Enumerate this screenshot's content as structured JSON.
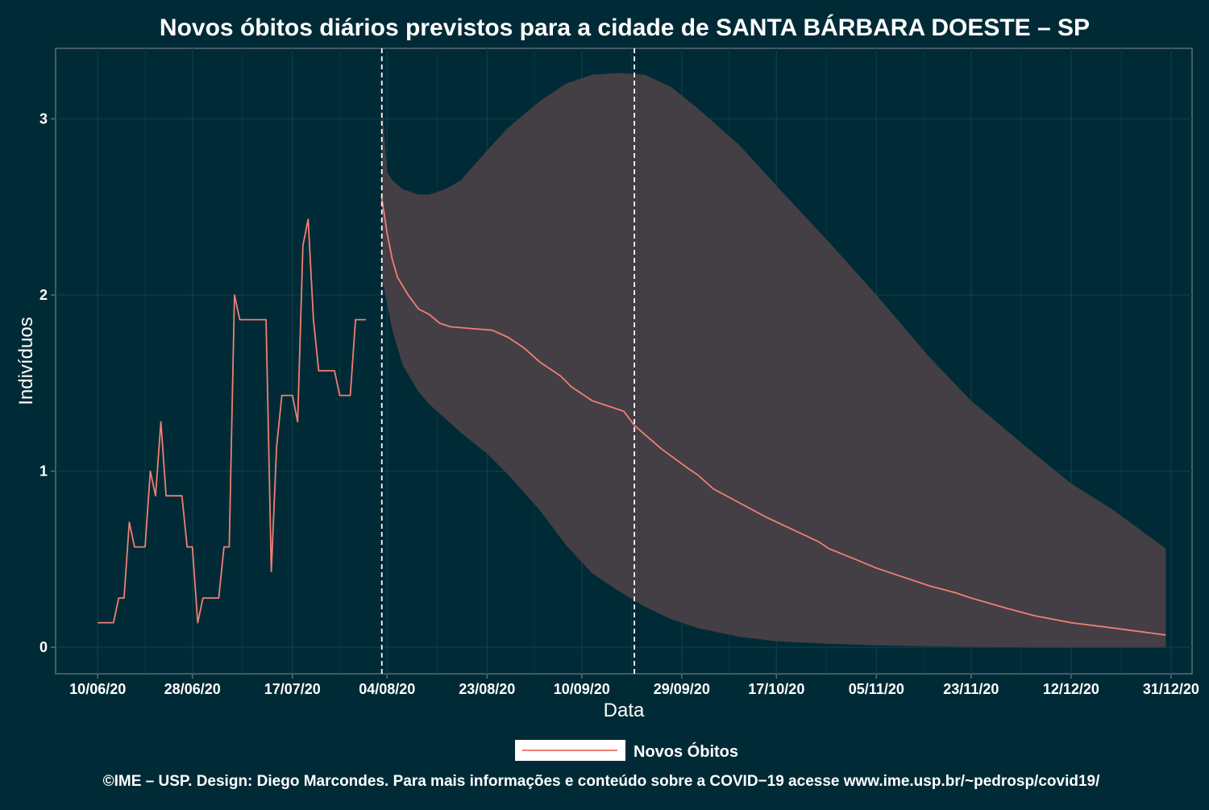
{
  "chart_data": {
    "type": "line",
    "title": "Novos óbitos diários previstos para a cidade de SANTA BÁRBARA DOESTE – SP",
    "xlabel": "Data",
    "ylabel": "Indivíduos",
    "caption": "©IME – USP. Design: Diego Marcondes. Para mais informações e conteúdo sobre a COVID−19 acesse www.ime.usp.br/~pedrosp/covid19/",
    "x_axis": {
      "type": "date",
      "range": [
        "2020-06-02",
        "2021-01-04"
      ],
      "ticks": [
        {
          "date": "2020-06-10",
          "label": "10/06/20"
        },
        {
          "date": "2020-06-28",
          "label": "28/06/20"
        },
        {
          "date": "2020-07-17",
          "label": "17/07/20"
        },
        {
          "date": "2020-08-04",
          "label": "04/08/20"
        },
        {
          "date": "2020-08-23",
          "label": "23/08/20"
        },
        {
          "date": "2020-09-10",
          "label": "10/09/20"
        },
        {
          "date": "2020-09-29",
          "label": "29/09/20"
        },
        {
          "date": "2020-10-17",
          "label": "17/10/20"
        },
        {
          "date": "2020-11-05",
          "label": "05/11/20"
        },
        {
          "date": "2020-11-23",
          "label": "23/11/20"
        },
        {
          "date": "2020-12-12",
          "label": "12/12/20"
        },
        {
          "date": "2020-12-31",
          "label": "31/12/20"
        }
      ]
    },
    "y_axis": {
      "range": [
        -0.15,
        3.4
      ],
      "ticks": [
        {
          "value": 0,
          "label": "0"
        },
        {
          "value": 1,
          "label": "1"
        },
        {
          "value": 2,
          "label": "2"
        },
        {
          "value": 3,
          "label": "3"
        }
      ]
    },
    "grid": true,
    "legend": {
      "position": "bottom",
      "entries": [
        {
          "label": "Novos Óbitos",
          "color": "#f07f74"
        }
      ]
    },
    "vlines": [
      {
        "date": "2020-08-03",
        "style": "dashed"
      },
      {
        "date": "2020-09-20",
        "style": "dashed"
      }
    ],
    "colors": {
      "background": "#002b36",
      "line": "#f07f74",
      "band": "#433f45",
      "text": "#ffffff",
      "axis": "#586e75",
      "grid": "#0c3a46"
    },
    "series": [
      {
        "name": "Novos Óbitos",
        "kind": "observed",
        "points": [
          [
            "2020-06-10",
            0.14
          ],
          [
            "2020-06-11",
            0.14
          ],
          [
            "2020-06-13",
            0.14
          ],
          [
            "2020-06-14",
            0.28
          ],
          [
            "2020-06-15",
            0.28
          ],
          [
            "2020-06-16",
            0.71
          ],
          [
            "2020-06-17",
            0.57
          ],
          [
            "2020-06-19",
            0.57
          ],
          [
            "2020-06-20",
            1.0
          ],
          [
            "2020-06-21",
            0.86
          ],
          [
            "2020-06-22",
            1.28
          ],
          [
            "2020-06-23",
            0.86
          ],
          [
            "2020-06-26",
            0.86
          ],
          [
            "2020-06-27",
            0.57
          ],
          [
            "2020-06-28",
            0.57
          ],
          [
            "2020-06-29",
            0.14
          ],
          [
            "2020-06-30",
            0.28
          ],
          [
            "2020-07-03",
            0.28
          ],
          [
            "2020-07-04",
            0.57
          ],
          [
            "2020-07-05",
            0.57
          ],
          [
            "2020-07-06",
            2.0
          ],
          [
            "2020-07-07",
            1.86
          ],
          [
            "2020-07-12",
            1.86
          ],
          [
            "2020-07-13",
            0.43
          ],
          [
            "2020-07-14",
            1.14
          ],
          [
            "2020-07-15",
            1.43
          ],
          [
            "2020-07-17",
            1.43
          ],
          [
            "2020-07-18",
            1.28
          ],
          [
            "2020-07-19",
            2.28
          ],
          [
            "2020-07-20",
            2.43
          ],
          [
            "2020-07-21",
            1.86
          ],
          [
            "2020-07-22",
            1.57
          ],
          [
            "2020-07-25",
            1.57
          ],
          [
            "2020-07-26",
            1.43
          ],
          [
            "2020-07-28",
            1.43
          ],
          [
            "2020-07-29",
            1.86
          ],
          [
            "2020-07-31",
            1.86
          ]
        ]
      },
      {
        "name": "Novos Óbitos",
        "kind": "forecast",
        "points": [
          [
            "2020-08-03",
            2.55
          ],
          [
            "2020-08-04",
            2.35
          ],
          [
            "2020-08-05",
            2.2
          ],
          [
            "2020-08-06",
            2.1
          ],
          [
            "2020-08-08",
            2.0
          ],
          [
            "2020-08-10",
            1.92
          ],
          [
            "2020-08-12",
            1.89
          ],
          [
            "2020-08-14",
            1.84
          ],
          [
            "2020-08-16",
            1.82
          ],
          [
            "2020-08-20",
            1.81
          ],
          [
            "2020-08-24",
            1.8
          ],
          [
            "2020-08-27",
            1.76
          ],
          [
            "2020-08-30",
            1.7
          ],
          [
            "2020-09-02",
            1.62
          ],
          [
            "2020-09-06",
            1.54
          ],
          [
            "2020-09-08",
            1.48
          ],
          [
            "2020-09-12",
            1.4
          ],
          [
            "2020-09-16",
            1.36
          ],
          [
            "2020-09-18",
            1.34
          ],
          [
            "2020-09-20",
            1.26
          ],
          [
            "2020-09-25",
            1.13
          ],
          [
            "2020-09-30",
            1.02
          ],
          [
            "2020-10-02",
            0.98
          ],
          [
            "2020-10-05",
            0.9
          ],
          [
            "2020-10-10",
            0.82
          ],
          [
            "2020-10-15",
            0.74
          ],
          [
            "2020-10-20",
            0.67
          ],
          [
            "2020-10-25",
            0.6
          ],
          [
            "2020-10-27",
            0.56
          ],
          [
            "2020-11-01",
            0.5
          ],
          [
            "2020-11-05",
            0.45
          ],
          [
            "2020-11-10",
            0.4
          ],
          [
            "2020-11-15",
            0.35
          ],
          [
            "2020-11-20",
            0.31
          ],
          [
            "2020-11-23",
            0.28
          ],
          [
            "2020-11-30",
            0.22
          ],
          [
            "2020-12-05",
            0.18
          ],
          [
            "2020-12-12",
            0.14
          ],
          [
            "2020-12-20",
            0.11
          ],
          [
            "2020-12-30",
            0.07
          ]
        ]
      }
    ],
    "band": {
      "name": "forecast interval",
      "points": [
        [
          "2020-08-03",
          3.1,
          2.1
        ],
        [
          "2020-08-04",
          2.7,
          1.95
        ],
        [
          "2020-08-05",
          2.65,
          1.8
        ],
        [
          "2020-08-07",
          2.6,
          1.6
        ],
        [
          "2020-08-10",
          2.57,
          1.45
        ],
        [
          "2020-08-12",
          2.57,
          1.38
        ],
        [
          "2020-08-15",
          2.6,
          1.3
        ],
        [
          "2020-08-18",
          2.65,
          1.22
        ],
        [
          "2020-08-23",
          2.82,
          1.1
        ],
        [
          "2020-08-27",
          2.95,
          0.98
        ],
        [
          "2020-09-02",
          3.1,
          0.78
        ],
        [
          "2020-09-07",
          3.2,
          0.58
        ],
        [
          "2020-09-12",
          3.25,
          0.42
        ],
        [
          "2020-09-17",
          3.26,
          0.32
        ],
        [
          "2020-09-22",
          3.25,
          0.23
        ],
        [
          "2020-09-27",
          3.18,
          0.16
        ],
        [
          "2020-10-02",
          3.06,
          0.11
        ],
        [
          "2020-10-10",
          2.85,
          0.06
        ],
        [
          "2020-10-17",
          2.62,
          0.035
        ],
        [
          "2020-10-27",
          2.3,
          0.02
        ],
        [
          "2020-11-05",
          2.0,
          0.012
        ],
        [
          "2020-11-15",
          1.65,
          0.006
        ],
        [
          "2020-11-23",
          1.4,
          0.003
        ],
        [
          "2020-12-05",
          1.1,
          0.0
        ],
        [
          "2020-12-12",
          0.93,
          0.0
        ],
        [
          "2020-12-20",
          0.78,
          0.0
        ],
        [
          "2020-12-30",
          0.56,
          0.0
        ]
      ]
    }
  }
}
